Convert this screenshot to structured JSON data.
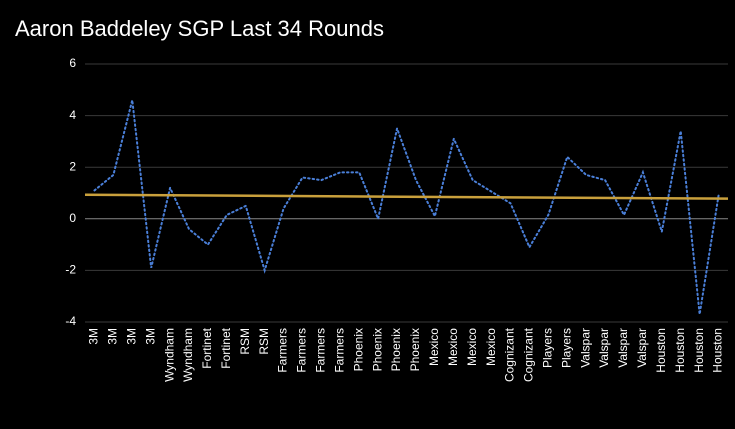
{
  "chart_data": {
    "type": "line",
    "title": "Aaron Baddeley SGP Last 34 Rounds",
    "categories": [
      "3M",
      "3M",
      "3M",
      "3M",
      "Wyndham",
      "Wyndham",
      "Fortinet",
      "Fortinet",
      "RSM",
      "RSM",
      "Farmers",
      "Farmers",
      "Farmers",
      "Farmers",
      "Phoenix",
      "Phoenix",
      "Phoenix",
      "Phoenix",
      "Mexico",
      "Mexico",
      "Mexico",
      "Mexico",
      "Cognizant",
      "Cognizant",
      "Players",
      "Players",
      "Valspar",
      "Valspar",
      "Valspar",
      "Valspar",
      "Houston",
      "Houston",
      "Houston",
      "Houston"
    ],
    "series": [
      {
        "color": "#4a7fd8",
        "values": [
          1.1,
          1.7,
          4.6,
          -1.9,
          1.2,
          -0.4,
          -1.0,
          0.15,
          0.5,
          -2.0,
          0.4,
          1.6,
          1.5,
          1.8,
          1.8,
          0.0,
          3.5,
          1.5,
          0.1,
          3.1,
          1.5,
          1.05,
          0.6,
          -1.1,
          0.15,
          2.4,
          1.7,
          1.5,
          0.15,
          1.8,
          -0.5,
          3.4,
          -3.7,
          0.9
        ]
      }
    ],
    "trendline": {
      "color": "#c9a03c"
    },
    "ylim": [
      -4,
      6
    ],
    "yticks": [
      -4,
      -2,
      0,
      2,
      4,
      6
    ],
    "grid": true
  }
}
